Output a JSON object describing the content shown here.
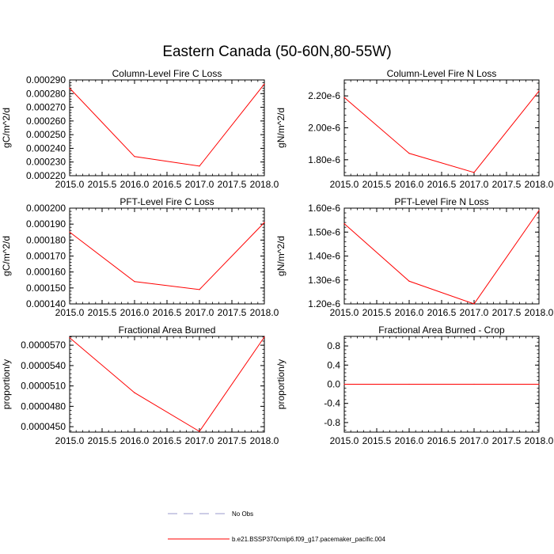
{
  "figure": {
    "title": "Eastern Canada (50-60N,80-55W)"
  },
  "legend": {
    "items": [
      {
        "label": "No Obs",
        "style": "dashed",
        "color": "#9999cc"
      },
      {
        "label": "b.e21.BSSP370cmip6.f09_g17.pacemaker_pacific.004",
        "style": "solid",
        "color": "#ff0000"
      }
    ]
  },
  "chart_data": [
    {
      "type": "line",
      "title": "Column-Level Fire C Loss",
      "ylabel": "gC/m^2/d",
      "xlim": [
        2015.0,
        2018.0
      ],
      "ylim": [
        0.00022,
        0.00029
      ],
      "xticks": [
        "2015.0",
        "2015.5",
        "2016.0",
        "2016.5",
        "2017.0",
        "2017.5",
        "2018.0"
      ],
      "yticks": [
        "0.000220",
        "0.000230",
        "0.000240",
        "0.000250",
        "0.000260",
        "0.000270",
        "0.000280",
        "0.000290"
      ],
      "yticks_values": [
        0.00022,
        0.00023,
        0.00024,
        0.00025,
        0.00026,
        0.00027,
        0.00028,
        0.00029
      ],
      "series": [
        {
          "name": "b.e21.BSSP370cmip6.f09_g17.pacemaker_pacific.004",
          "color": "#ff0000",
          "x": [
            2015,
            2016,
            2017,
            2018
          ],
          "y": [
            0.000284,
            0.000234,
            0.000227,
            0.000287
          ]
        }
      ]
    },
    {
      "type": "line",
      "title": "Column-Level Fire N Loss",
      "ylabel": "gN/m^2/d",
      "xlim": [
        2015.0,
        2018.0
      ],
      "ylim": [
        1.7e-06,
        2.3e-06
      ],
      "xticks": [
        "2015.0",
        "2015.5",
        "2016.0",
        "2016.5",
        "2017.0",
        "2017.5",
        "2018.0"
      ],
      "yticks": [
        "1.80e-6",
        "2.00e-6",
        "2.20e-6"
      ],
      "yticks_values": [
        1.8e-06,
        2e-06,
        2.2e-06
      ],
      "series": [
        {
          "name": "b.e21.BSSP370cmip6.f09_g17.pacemaker_pacific.004",
          "color": "#ff0000",
          "x": [
            2015,
            2016,
            2017,
            2018
          ],
          "y": [
            2.19e-06,
            1.84e-06,
            1.72e-06,
            2.23e-06
          ]
        }
      ]
    },
    {
      "type": "line",
      "title": "PFT-Level Fire C Loss",
      "ylabel": "gC/m^2/d",
      "xlim": [
        2015.0,
        2018.0
      ],
      "ylim": [
        0.00014,
        0.0002
      ],
      "xticks": [
        "2015.0",
        "2015.5",
        "2016.0",
        "2016.5",
        "2017.0",
        "2017.5",
        "2018.0"
      ],
      "yticks": [
        "0.000140",
        "0.000150",
        "0.000160",
        "0.000170",
        "0.000180",
        "0.000190",
        "0.000200"
      ],
      "yticks_values": [
        0.00014,
        0.00015,
        0.00016,
        0.00017,
        0.00018,
        0.00019,
        0.0002
      ],
      "series": [
        {
          "name": "b.e21.BSSP370cmip6.f09_g17.pacemaker_pacific.004",
          "color": "#ff0000",
          "x": [
            2015,
            2016,
            2017,
            2018
          ],
          "y": [
            0.000185,
            0.000154,
            0.000149,
            0.000191
          ]
        }
      ]
    },
    {
      "type": "line",
      "title": "PFT-Level Fire N Loss",
      "ylabel": "gN/m^2/d",
      "xlim": [
        2015.0,
        2018.0
      ],
      "ylim": [
        1.2e-06,
        1.6e-06
      ],
      "xticks": [
        "2015.0",
        "2015.5",
        "2016.0",
        "2016.5",
        "2017.0",
        "2017.5",
        "2018.0"
      ],
      "yticks": [
        "1.20e-6",
        "1.30e-6",
        "1.40e-6",
        "1.50e-6",
        "1.60e-6"
      ],
      "yticks_values": [
        1.2e-06,
        1.3e-06,
        1.4e-06,
        1.5e-06,
        1.6e-06
      ],
      "series": [
        {
          "name": "b.e21.BSSP370cmip6.f09_g17.pacemaker_pacific.004",
          "color": "#ff0000",
          "x": [
            2015,
            2016,
            2017,
            2018
          ],
          "y": [
            1.535e-06,
            1.295e-06,
            1.2e-06,
            1.59e-06
          ]
        }
      ]
    },
    {
      "type": "line",
      "title": "Fractional Area Burned",
      "ylabel": "proportion/y",
      "xlim": [
        2015.0,
        2018.0
      ],
      "ylim": [
        4.42e-05,
        5.83e-05
      ],
      "xticks": [
        "2015.0",
        "2015.5",
        "2016.0",
        "2016.5",
        "2017.0",
        "2017.5",
        "2018.0"
      ],
      "yticks": [
        "0.0000450",
        "0.0000480",
        "0.0000510",
        "0.0000540",
        "0.0000570"
      ],
      "yticks_values": [
        4.5e-05,
        4.8e-05,
        5.1e-05,
        5.4e-05,
        5.7e-05
      ],
      "series": [
        {
          "name": "b.e21.BSSP370cmip6.f09_g17.pacemaker_pacific.004",
          "color": "#ff0000",
          "x": [
            2015,
            2016,
            2017,
            2018
          ],
          "y": [
            5.81e-05,
            5e-05,
            4.43e-05,
            5.82e-05
          ]
        }
      ]
    },
    {
      "type": "line",
      "title": "Fractional Area Burned - Crop",
      "ylabel": "proportion/y",
      "xlim": [
        2015.0,
        2018.0
      ],
      "ylim": [
        -1.0,
        1.0
      ],
      "xticks": [
        "2015.0",
        "2015.5",
        "2016.0",
        "2016.5",
        "2017.0",
        "2017.5",
        "2018.0"
      ],
      "yticks": [
        "-0.8",
        "-0.4",
        "0.0",
        "0.4",
        "0.8"
      ],
      "yticks_values": [
        -0.8,
        -0.4,
        0.0,
        0.4,
        0.8
      ],
      "series": [
        {
          "name": "b.e21.BSSP370cmip6.f09_g17.pacemaker_pacific.004",
          "color": "#ff0000",
          "x": [
            2015,
            2016,
            2017,
            2018
          ],
          "y": [
            0,
            0,
            0,
            0
          ]
        }
      ]
    }
  ]
}
